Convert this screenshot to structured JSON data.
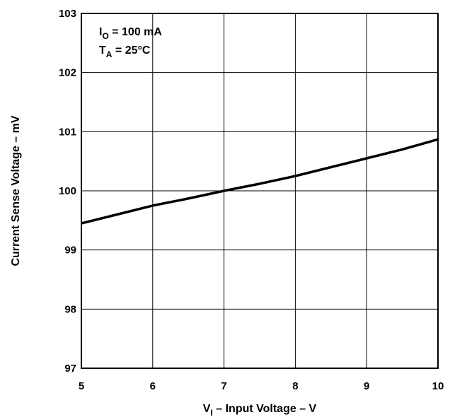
{
  "chart_data": {
    "type": "line",
    "xlabel": {
      "main": "V",
      "sub": "I",
      "rest": " – Input Voltage – V"
    },
    "ylabel": "Current Sense Voltage – mV",
    "xlim": [
      5,
      10
    ],
    "ylim": [
      97,
      103
    ],
    "x_ticks": [
      "5",
      "6",
      "7",
      "8",
      "9",
      "10"
    ],
    "y_ticks": [
      "97",
      "98",
      "99",
      "100",
      "101",
      "102",
      "103"
    ],
    "grid": true,
    "annotations": [
      {
        "main": "I",
        "sub": "O",
        "rest": " = 100 mA"
      },
      {
        "main": "T",
        "sub": "A",
        "rest": " = 25°C"
      }
    ],
    "series": [
      {
        "x": [
          5,
          5.5,
          6,
          6.5,
          7,
          7.5,
          8,
          8.5,
          9,
          9.5,
          10
        ],
        "y": [
          99.45,
          99.6,
          99.75,
          99.87,
          100.0,
          100.12,
          100.25,
          100.4,
          100.55,
          100.7,
          100.87
        ],
        "color": "#000000"
      }
    ]
  }
}
